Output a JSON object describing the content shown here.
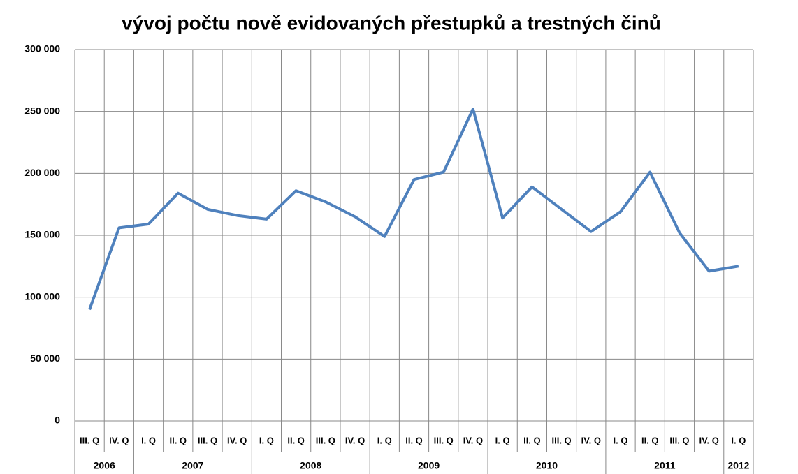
{
  "chart_data": {
    "type": "line",
    "title": "vývoj počtu nově evidovaných přestupků a trestných činů",
    "categories": [
      {
        "year": "2006",
        "quarter": "III. Q"
      },
      {
        "year": "2006",
        "quarter": "IV. Q"
      },
      {
        "year": "2007",
        "quarter": "I. Q"
      },
      {
        "year": "2007",
        "quarter": "II. Q"
      },
      {
        "year": "2007",
        "quarter": "III. Q"
      },
      {
        "year": "2007",
        "quarter": "IV. Q"
      },
      {
        "year": "2008",
        "quarter": "I. Q"
      },
      {
        "year": "2008",
        "quarter": "II. Q"
      },
      {
        "year": "2008",
        "quarter": "III. Q"
      },
      {
        "year": "2008",
        "quarter": "IV. Q"
      },
      {
        "year": "2009",
        "quarter": "I. Q"
      },
      {
        "year": "2009",
        "quarter": "II. Q"
      },
      {
        "year": "2009",
        "quarter": "III. Q"
      },
      {
        "year": "2009",
        "quarter": "IV. Q"
      },
      {
        "year": "2010",
        "quarter": "I. Q"
      },
      {
        "year": "2010",
        "quarter": "II. Q"
      },
      {
        "year": "2010",
        "quarter": "III. Q"
      },
      {
        "year": "2010",
        "quarter": "IV. Q"
      },
      {
        "year": "2011",
        "quarter": "I. Q"
      },
      {
        "year": "2011",
        "quarter": "II. Q"
      },
      {
        "year": "2011",
        "quarter": "III. Q"
      },
      {
        "year": "2011",
        "quarter": "IV. Q"
      },
      {
        "year": "2012",
        "quarter": "I. Q"
      }
    ],
    "values": [
      90000,
      156000,
      159000,
      184000,
      171000,
      166000,
      163000,
      186000,
      177000,
      165000,
      149000,
      195000,
      201000,
      252000,
      164000,
      189000,
      171000,
      153000,
      169000,
      201000,
      152000,
      121000,
      125000
    ],
    "color": "#4f81bd",
    "ylim": [
      0,
      300000
    ],
    "yticks": [
      0,
      {
        "value": 50000,
        "label": "50 000"
      },
      {
        "value": 100000,
        "label": "100 000"
      },
      {
        "value": 150000,
        "label": "150 000"
      },
      {
        "value": 200000,
        "label": "200 000"
      },
      {
        "value": 250000,
        "label": "250 000"
      },
      {
        "value": 300000,
        "label": "300 000"
      }
    ],
    "grid": true
  }
}
